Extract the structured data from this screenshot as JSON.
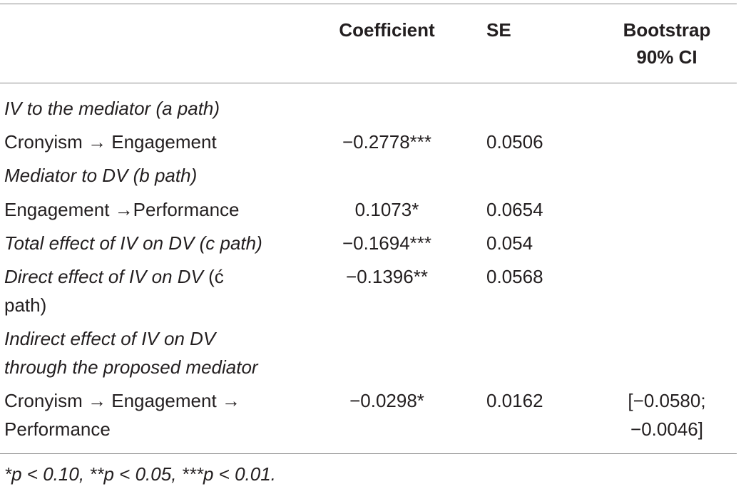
{
  "table": {
    "headers": {
      "coefficient": "Coefficient",
      "se": "SE",
      "ci_line1": "Bootstrap",
      "ci_line2": "90% CI"
    },
    "rows": [
      {
        "label": "IV to the mediator (a path)",
        "italic": true,
        "coefficient": "",
        "se": "",
        "ci": ""
      },
      {
        "label": "Cronyism → Engagement",
        "italic": false,
        "coefficient": "−0.2778***",
        "se": "0.0506",
        "ci": ""
      },
      {
        "label": "Mediator to DV (b path)",
        "italic": true,
        "coefficient": "",
        "se": "",
        "ci": ""
      },
      {
        "label": "Engagement →Performance",
        "italic": false,
        "coefficient": "0.1073*",
        "se": "0.0654",
        "ci": ""
      },
      {
        "label": "Total effect of IV on DV (c path)",
        "italic": true,
        "coefficient": "−0.1694***",
        "se": "0.054",
        "ci": ""
      },
      {
        "label_line1": "Direct effect of IV on DV",
        "label_line1_tail": " (ć",
        "label_line2": "path)",
        "italic": true,
        "coefficient": "−0.1396**",
        "se": "0.0568",
        "ci": ""
      },
      {
        "label_line1": "Indirect effect of IV on DV",
        "label_line2": "through the proposed mediator",
        "italic": true,
        "coefficient": "",
        "se": "",
        "ci": ""
      },
      {
        "label_line1": "Cronyism → Engagement →",
        "label_line2": "Performance",
        "italic": false,
        "coefficient": "−0.0298*",
        "se": "0.0162",
        "ci_line1": "[−0.0580;",
        "ci_line2": "−0.0046]"
      }
    ],
    "footnote": "*p < 0.10, **p < 0.05, ***p < 0.01."
  }
}
